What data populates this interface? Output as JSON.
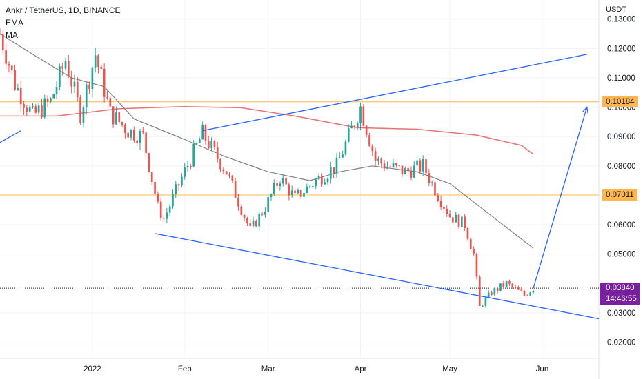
{
  "header": {
    "symbol": "Ankr / TetherUS, 1D, BINANCE",
    "indicators": [
      "EMA",
      "MA"
    ]
  },
  "axis": {
    "currency": "USDT",
    "y_ticks": [
      "0.13000",
      "0.12000",
      "0.11000",
      "0.10000",
      "0.09000",
      "0.08000",
      "0.06000",
      "0.05000",
      "0.03000",
      "0.02000"
    ],
    "x_ticks": [
      "2022",
      "Feb",
      "Mar",
      "Apr",
      "May",
      "Jun"
    ]
  },
  "levels": {
    "upper_label": "0.10184",
    "lower_label": "0.07011"
  },
  "last": {
    "price": "0.03840",
    "countdown": "14:46:55"
  },
  "colors": {
    "up": "#26a69a",
    "down": "#ef5350",
    "ema": "#7f7f7f",
    "ma": "#e57373",
    "trendline": "#2962ff",
    "level": "#ffb74d",
    "last_price": "#7b1fa2"
  },
  "chart_data": {
    "type": "candlestick",
    "symbol": "Ankr / TetherUS",
    "interval": "1D",
    "exchange": "BINANCE",
    "ylabel": "USDT",
    "ylim": [
      0.0145,
      0.1365
    ],
    "xlim": [
      "2021-12-01",
      "2022-06-20"
    ],
    "horizontal_levels": [
      0.10184,
      0.07011
    ],
    "last_price": 0.0384,
    "candle_anchors": [
      {
        "date": "2021-12-01",
        "close": 0.125
      },
      {
        "date": "2021-12-06",
        "close": 0.108
      },
      {
        "date": "2021-12-12",
        "close": 0.097
      },
      {
        "date": "2021-12-18",
        "close": 0.102
      },
      {
        "date": "2021-12-23",
        "close": 0.116
      },
      {
        "date": "2021-12-28",
        "close": 0.098
      },
      {
        "date": "2022-01-02",
        "close": 0.118
      },
      {
        "date": "2022-01-07",
        "close": 0.098
      },
      {
        "date": "2022-01-13",
        "close": 0.092
      },
      {
        "date": "2022-01-18",
        "close": 0.09
      },
      {
        "date": "2022-01-23",
        "close": 0.066
      },
      {
        "date": "2022-01-25",
        "close": 0.062
      },
      {
        "date": "2022-01-31",
        "close": 0.076
      },
      {
        "date": "2022-02-07",
        "close": 0.091
      },
      {
        "date": "2022-02-10",
        "close": 0.086
      },
      {
        "date": "2022-02-15",
        "close": 0.078
      },
      {
        "date": "2022-02-23",
        "close": 0.058
      },
      {
        "date": "2022-02-28",
        "close": 0.066
      },
      {
        "date": "2022-03-05",
        "close": 0.076
      },
      {
        "date": "2022-03-10",
        "close": 0.069
      },
      {
        "date": "2022-03-17",
        "close": 0.075
      },
      {
        "date": "2022-03-24",
        "close": 0.08
      },
      {
        "date": "2022-04-01",
        "close": 0.1
      },
      {
        "date": "2022-04-06",
        "close": 0.082
      },
      {
        "date": "2022-04-10",
        "close": 0.08
      },
      {
        "date": "2022-04-16",
        "close": 0.078
      },
      {
        "date": "2022-04-22",
        "close": 0.08
      },
      {
        "date": "2022-04-26",
        "close": 0.072
      },
      {
        "date": "2022-05-01",
        "close": 0.063
      },
      {
        "date": "2022-05-06",
        "close": 0.06
      },
      {
        "date": "2022-05-09",
        "close": 0.05
      },
      {
        "date": "2022-05-11",
        "close": 0.032
      },
      {
        "date": "2022-05-15",
        "close": 0.037
      },
      {
        "date": "2022-05-20",
        "close": 0.04
      },
      {
        "date": "2022-05-26",
        "close": 0.036
      },
      {
        "date": "2022-05-29",
        "close": 0.0384
      }
    ],
    "ema": [
      {
        "date": "2021-12-01",
        "value": 0.125
      },
      {
        "date": "2021-12-12",
        "value": 0.118
      },
      {
        "date": "2021-12-25",
        "value": 0.11
      },
      {
        "date": "2022-01-05",
        "value": 0.107
      },
      {
        "date": "2022-01-15",
        "value": 0.096
      },
      {
        "date": "2022-02-01",
        "value": 0.089
      },
      {
        "date": "2022-02-15",
        "value": 0.083
      },
      {
        "date": "2022-03-01",
        "value": 0.078
      },
      {
        "date": "2022-03-15",
        "value": 0.075
      },
      {
        "date": "2022-03-25",
        "value": 0.078
      },
      {
        "date": "2022-04-05",
        "value": 0.08
      },
      {
        "date": "2022-04-20",
        "value": 0.078
      },
      {
        "date": "2022-05-01",
        "value": 0.074
      },
      {
        "date": "2022-05-15",
        "value": 0.063
      },
      {
        "date": "2022-05-29",
        "value": 0.052
      }
    ],
    "ma": [
      {
        "date": "2021-12-01",
        "value": 0.097
      },
      {
        "date": "2021-12-20",
        "value": 0.097
      },
      {
        "date": "2022-01-10",
        "value": 0.0995
      },
      {
        "date": "2022-02-01",
        "value": 0.1002
      },
      {
        "date": "2022-02-20",
        "value": 0.0998
      },
      {
        "date": "2022-03-10",
        "value": 0.097
      },
      {
        "date": "2022-03-31",
        "value": 0.093
      },
      {
        "date": "2022-04-20",
        "value": 0.0925
      },
      {
        "date": "2022-05-10",
        "value": 0.0905
      },
      {
        "date": "2022-05-25",
        "value": 0.087
      },
      {
        "date": "2022-05-29",
        "value": 0.084
      }
    ],
    "trendlines": [
      {
        "from": {
          "date": "2022-02-07",
          "value": 0.092
        },
        "to": {
          "date": "2022-06-16",
          "value": 0.118
        }
      },
      {
        "from": {
          "date": "2022-01-22",
          "value": 0.057
        },
        "to": {
          "date": "2022-06-20",
          "value": 0.028
        }
      },
      {
        "from": {
          "date": "2021-12-01",
          "value": 0.088
        },
        "to": {
          "date": "2021-12-08",
          "value": 0.092
        }
      }
    ],
    "projection": {
      "from": {
        "date": "2022-05-29",
        "value": 0.0384
      },
      "to": {
        "date": "2022-06-16",
        "value": 0.1
      }
    }
  }
}
